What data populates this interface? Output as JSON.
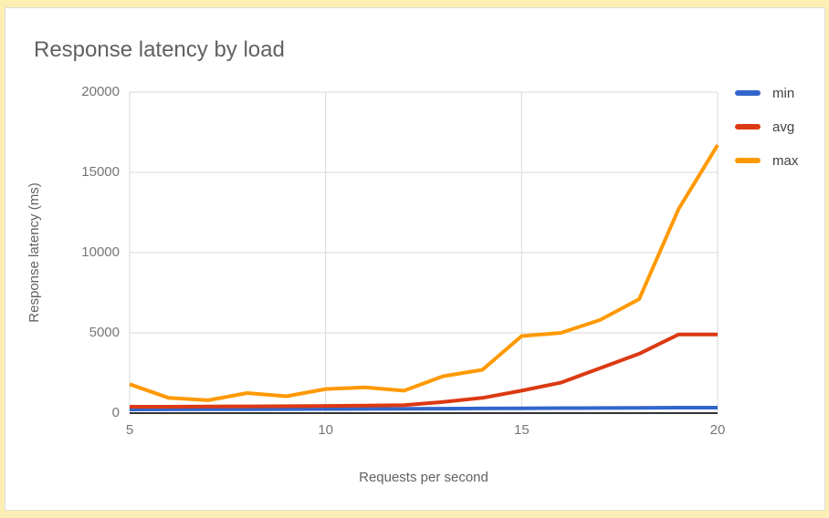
{
  "page": {
    "background_color": "#fdeeb3",
    "card_background": "#ffffff",
    "card_border_color": "#dcdcdc"
  },
  "chart_data": {
    "type": "line",
    "title": "Response latency by load",
    "xlabel": "Requests per second",
    "ylabel": "Response latency (ms)",
    "x": [
      5,
      6,
      7,
      8,
      9,
      10,
      11,
      12,
      13,
      14,
      15,
      16,
      17,
      18,
      19,
      20
    ],
    "xlim": [
      5,
      20
    ],
    "ylim": [
      0,
      20000
    ],
    "x_ticks": [
      5,
      10,
      15,
      20
    ],
    "y_ticks": [
      0,
      5000,
      10000,
      15000,
      20000
    ],
    "grid": true,
    "legend_position": "right",
    "series": [
      {
        "name": "min",
        "color": "#3366cc",
        "values": [
          230,
          235,
          240,
          245,
          250,
          255,
          260,
          270,
          280,
          290,
          300,
          310,
          320,
          330,
          340,
          340
        ]
      },
      {
        "name": "avg",
        "color": "#dc3912",
        "values": [
          400,
          400,
          410,
          420,
          430,
          450,
          470,
          500,
          700,
          950,
          1400,
          1900,
          2800,
          3700,
          4900,
          4900
        ]
      },
      {
        "name": "max",
        "color": "#ff9900",
        "values": [
          1800,
          950,
          800,
          1250,
          1050,
          1500,
          1600,
          1400,
          2300,
          2700,
          4800,
          5000,
          5800,
          7100,
          12700,
          16700
        ]
      }
    ],
    "colors": {
      "gridline": "#d9d9d9",
      "axis_line": "#333333",
      "tick_label": "#757575",
      "title": "#616161",
      "axis_title": "#616161",
      "legend_label": "#424242"
    }
  }
}
